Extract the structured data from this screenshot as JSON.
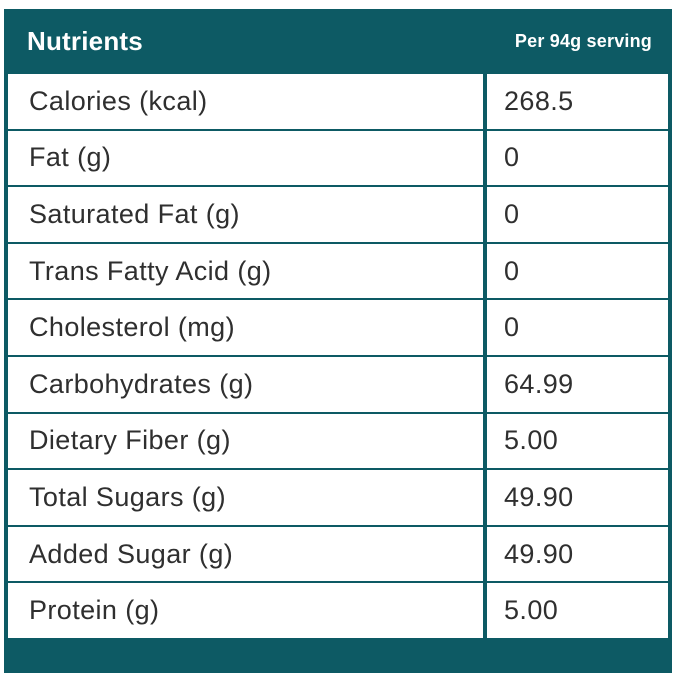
{
  "table": {
    "header": {
      "title": "Nutrients",
      "serving": "Per 94g serving"
    },
    "rows": [
      {
        "label": "Calories (kcal)",
        "value": "268.5"
      },
      {
        "label": "Fat (g)",
        "value": "0"
      },
      {
        "label": "Saturated Fat (g)",
        "value": "0"
      },
      {
        "label": "Trans Fatty Acid (g)",
        "value": "0"
      },
      {
        "label": "Cholesterol (mg)",
        "value": "0"
      },
      {
        "label": "Carbohydrates (g)",
        "value": "64.99"
      },
      {
        "label": "Dietary Fiber (g)",
        "value": "5.00"
      },
      {
        "label": "Total Sugars (g)",
        "value": "49.90"
      },
      {
        "label": "Added Sugar (g)",
        "value": "49.90"
      },
      {
        "label": "Protein (g)",
        "value": "5.00"
      }
    ],
    "colors": {
      "teal": "#0d5a64",
      "header_text": "#ffffff",
      "body_text": "#2f2f2f",
      "row_background": "#ffffff"
    }
  }
}
